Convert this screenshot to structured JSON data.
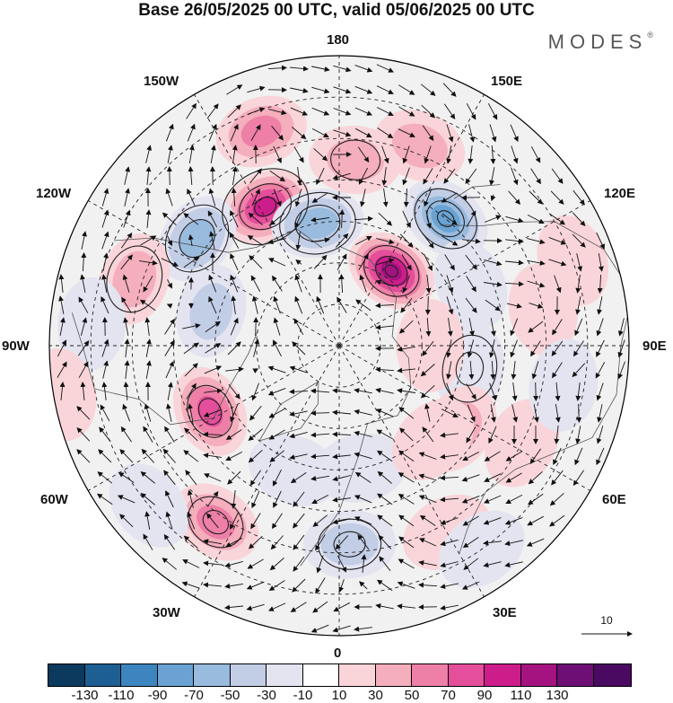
{
  "header": {
    "title": "Base 26/05/2025 00 UTC, valid 05/06/2025 00 UTC",
    "brand": "MODES",
    "brand_mark": "®"
  },
  "map": {
    "projection": "north-polar-stereographic",
    "lon_labels": {
      "l180": "180",
      "l150e": "150E",
      "l120e": "120E",
      "l90e": "90E",
      "l60e": "60E",
      "l30e": "30E",
      "l0": "0",
      "l30w": "30W",
      "l60w": "60W",
      "l90w": "90W",
      "l120w": "120W",
      "l150w": "150W"
    },
    "reference_vector": "10",
    "colorbar": {
      "ticks": [
        "-130",
        "-110",
        "-90",
        "-70",
        "-50",
        "-30",
        "-10",
        "10",
        "30",
        "50",
        "70",
        "90",
        "110",
        "130"
      ],
      "colors": [
        "#0b3a5e",
        "#1d5f93",
        "#3c85be",
        "#6aa3d3",
        "#98bbde",
        "#c2cde6",
        "#e3e4f0",
        "#ffffff",
        "#f9d5d9",
        "#f4aebc",
        "#ee7fa7",
        "#e44e9a",
        "#cc1d8a",
        "#a4137f",
        "#6d0f74",
        "#4b0a62"
      ]
    },
    "anomalies": [
      {
        "lon": 140,
        "lat": 50,
        "value": -85
      },
      {
        "lon": 175,
        "lat": 45,
        "value": 30
      },
      {
        "lon": 158,
        "lat": 38,
        "value": 35
      },
      {
        "lon": -160,
        "lat": 35,
        "value": 60
      },
      {
        "lon": -152,
        "lat": 52,
        "value": 105
      },
      {
        "lon": -127,
        "lat": 47,
        "value": -50
      },
      {
        "lon": -170,
        "lat": 60,
        "value": -60
      },
      {
        "lon": 145,
        "lat": 68,
        "value": 115
      },
      {
        "lon": 115,
        "lat": 55,
        "value": -25
      },
      {
        "lon": 100,
        "lat": 40,
        "value": 25
      },
      {
        "lon": 110,
        "lat": 30,
        "value": 20
      },
      {
        "lon": 80,
        "lat": 58,
        "value": -20
      },
      {
        "lon": 62,
        "lat": 40,
        "value": 25
      },
      {
        "lon": 80,
        "lat": 35,
        "value": -20
      },
      {
        "lon": 90,
        "lat": 68,
        "value": 25
      },
      {
        "lon": 55,
        "lat": 55,
        "value": 35
      },
      {
        "lon": -108,
        "lat": 38,
        "value": 35
      },
      {
        "lon": -95,
        "lat": 30,
        "value": -20
      },
      {
        "lon": -105,
        "lat": 58,
        "value": -30
      },
      {
        "lon": -80,
        "lat": 22,
        "value": 20
      },
      {
        "lon": -63,
        "lat": 55,
        "value": 70
      },
      {
        "lon": -35,
        "lat": 38,
        "value": 60
      },
      {
        "lon": -50,
        "lat": 30,
        "value": -25
      },
      {
        "lon": 3,
        "lat": 42,
        "value": -45
      },
      {
        "lon": 10,
        "lat": 60,
        "value": -25
      },
      {
        "lon": -20,
        "lat": 58,
        "value": -25
      },
      {
        "lon": 30,
        "lat": 38,
        "value": 25
      },
      {
        "lon": 45,
        "lat": 58,
        "value": 25
      },
      {
        "lon": 35,
        "lat": 30,
        "value": -20
      }
    ],
    "isobars": [
      {
        "lon": 140,
        "lat": 50,
        "r": [
          30,
          18,
          8
        ]
      },
      {
        "lon": 145,
        "lat": 68,
        "r": [
          26,
          15,
          6
        ]
      },
      {
        "lon": -152,
        "lat": 52,
        "r": [
          40,
          24,
          10
        ]
      },
      {
        "lon": -127,
        "lat": 47,
        "r": [
          32,
          18
        ]
      },
      {
        "lon": -170,
        "lat": 60,
        "r": [
          34,
          20
        ]
      },
      {
        "lon": -63,
        "lat": 55,
        "r": [
          24,
          12
        ]
      },
      {
        "lon": -35,
        "lat": 38,
        "r": [
          26,
          12
        ]
      },
      {
        "lon": 3,
        "lat": 42,
        "r": [
          28,
          14
        ]
      },
      {
        "lon": 80,
        "lat": 58,
        "r": [
          30,
          15
        ]
      },
      {
        "lon": 175,
        "lat": 45,
        "r": [
          22
        ]
      },
      {
        "lon": -108,
        "lat": 38,
        "r": [
          30
        ]
      }
    ]
  }
}
